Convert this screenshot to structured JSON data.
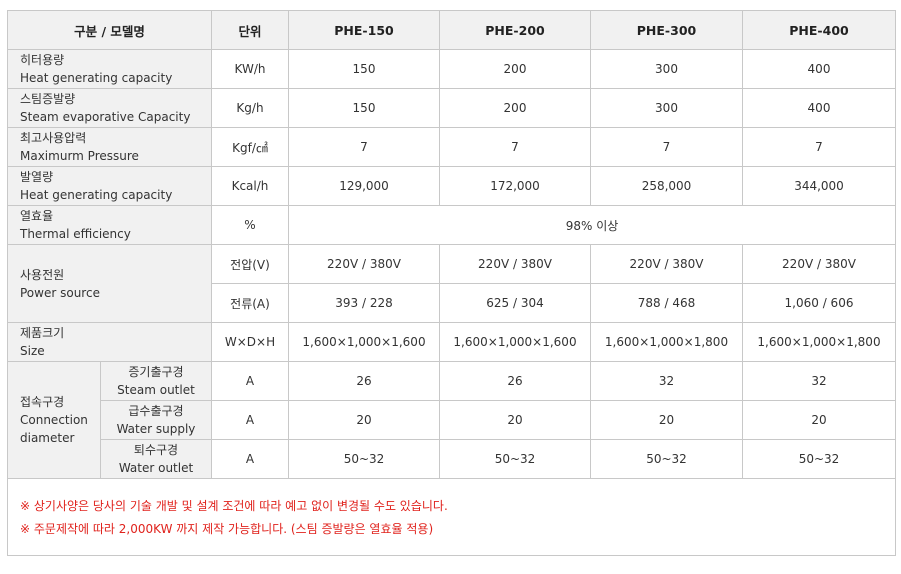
{
  "header": {
    "label": "구분 / 모델명",
    "unit": "단위",
    "models": [
      "PHE-150",
      "PHE-200",
      "PHE-300",
      "PHE-400"
    ]
  },
  "rows": [
    {
      "ko": "히터용량",
      "en": "Heat generating capacity",
      "unit": "KW/h",
      "values": [
        "150",
        "200",
        "300",
        "400"
      ]
    },
    {
      "ko": "스팀증발량",
      "en": "Steam evaporative Capacity",
      "unit": "Kg/h",
      "values": [
        "150",
        "200",
        "300",
        "400"
      ]
    },
    {
      "ko": "최고사용압력",
      "en": "Maximurm Pressure",
      "unit": "Kgf/㎠",
      "values": [
        "7",
        "7",
        "7",
        "7"
      ]
    },
    {
      "ko": "발열량",
      "en": "Heat generating capacity",
      "unit": "Kcal/h",
      "values": [
        "129,000",
        "172,000",
        "258,000",
        "344,000"
      ]
    }
  ],
  "efficiency": {
    "ko": "열효율",
    "en": "Thermal efficiency",
    "unit": "%",
    "value": "98% 이상"
  },
  "power": {
    "ko": "사용전원",
    "en": "Power source",
    "voltage": {
      "unit": "전압(V)",
      "values": [
        "220V / 380V",
        "220V / 380V",
        "220V / 380V",
        "220V / 380V"
      ]
    },
    "current": {
      "unit": "전류(A)",
      "values": [
        "393 / 228",
        "625 / 304",
        "788 / 468",
        "1,060 / 606"
      ]
    }
  },
  "size": {
    "ko": "제품크기",
    "en": "Size",
    "unit": "W×D×H",
    "values": [
      "1,600×1,000×1,600",
      "1,600×1,000×1,600",
      "1,600×1,000×1,800",
      "1,600×1,000×1,800"
    ]
  },
  "connection": {
    "ko": "접속구경",
    "en": "Connection diameter",
    "items": [
      {
        "ko": "증기출구경",
        "en": "Steam outlet",
        "unit": "A",
        "values": [
          "26",
          "26",
          "32",
          "32"
        ]
      },
      {
        "ko": "급수출구경",
        "en": "Water supply",
        "unit": "A",
        "values": [
          "20",
          "20",
          "20",
          "20"
        ]
      },
      {
        "ko": "퇴수구경",
        "en": "Water outlet",
        "unit": "A",
        "values": [
          "50~32",
          "50~32",
          "50~32",
          "50~32"
        ]
      }
    ]
  },
  "notes": [
    "※ 상기사양은 당사의 기술 개발 및 설계 조건에 따라 예고 없이 변경될 수도 있습니다.",
    "※ 주문제작에 따라 2,000KW 까지 제작 가능합니다. (스팀 증발량은 열효율 적용)"
  ],
  "colors": {
    "note": "#e0231d",
    "header_bg": "#f1f1f1",
    "border": "#c8c8c8"
  }
}
